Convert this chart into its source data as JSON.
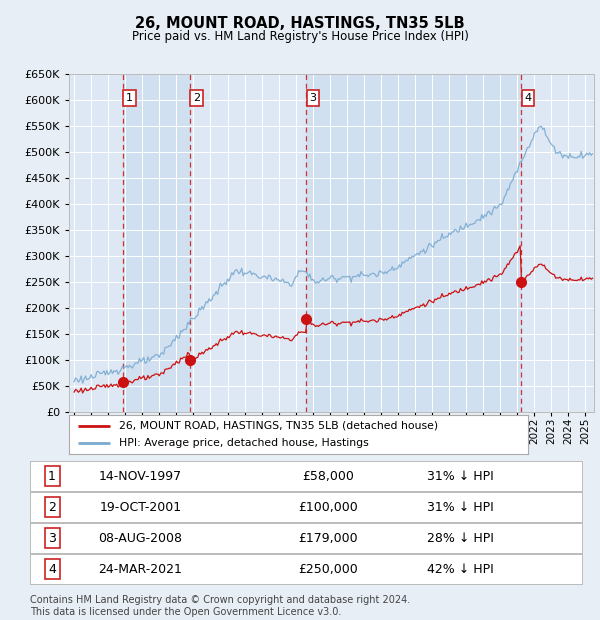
{
  "title": "26, MOUNT ROAD, HASTINGS, TN35 5LB",
  "subtitle": "Price paid vs. HM Land Registry's House Price Index (HPI)",
  "background_color": "#e8eef5",
  "plot_bg_color": "#dde8f4",
  "ylim": [
    0,
    650000
  ],
  "yticks": [
    0,
    50000,
    100000,
    150000,
    200000,
    250000,
    300000,
    350000,
    400000,
    450000,
    500000,
    550000,
    600000,
    650000
  ],
  "xlim_start": 1994.7,
  "xlim_end": 2025.5,
  "sale_dates": [
    1997.87,
    2001.8,
    2008.62,
    2021.23
  ],
  "sale_prices": [
    58000,
    100000,
    179000,
    250000
  ],
  "sale_labels": [
    "1",
    "2",
    "3",
    "4"
  ],
  "sale_pct": [
    "31% ↓ HPI",
    "31% ↓ HPI",
    "28% ↓ HPI",
    "42% ↓ HPI"
  ],
  "sale_date_strs": [
    "14-NOV-1997",
    "19-OCT-2001",
    "08-AUG-2008",
    "24-MAR-2021"
  ],
  "sale_price_strs": [
    "£58,000",
    "£100,000",
    "£179,000",
    "£250,000"
  ],
  "legend_line1": "26, MOUNT ROAD, HASTINGS, TN35 5LB (detached house)",
  "legend_line2": "HPI: Average price, detached house, Hastings",
  "footer": "Contains HM Land Registry data © Crown copyright and database right 2024.\nThis data is licensed under the Open Government Licence v3.0.",
  "hpi_color": "#7aaad0",
  "sale_color": "#cc1111",
  "dashed_line_color": "#cc3333",
  "shade_color": "#d0e0f0",
  "grid_color": "#ffffff",
  "label_box_color": "#ffffff",
  "label_box_edge": "#cc2222"
}
